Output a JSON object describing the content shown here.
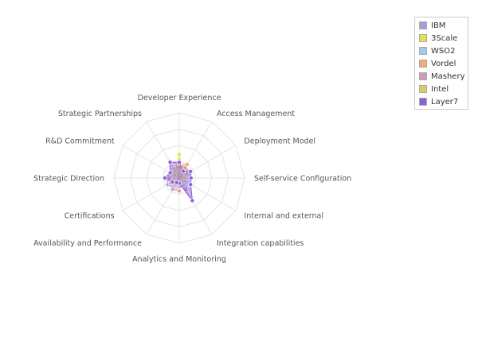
{
  "chart_data": {
    "type": "radar",
    "axes": [
      "Developer Experience",
      "Access Management",
      "Deployment Model",
      "Self-service Configuration",
      "Internal and external",
      "Integration capabilities",
      "Analytics and Monitoring",
      "Availability and Performance",
      "Certifications",
      "Strategic Direction",
      "R&D Commitment",
      "Strategic Partnerships"
    ],
    "rmax": 5,
    "rings": 4,
    "grid": true,
    "legend_position": "top-right",
    "series": [
      {
        "name": "IBM",
        "color": "#a99bd4",
        "values": [
          1.0,
          0.9,
          1.0,
          0.6,
          0.6,
          1.0,
          0.2,
          0.9,
          1.0,
          1.0,
          0.8,
          0.8
        ]
      },
      {
        "name": "3Scale",
        "color": "#e2e24a",
        "values": [
          1.8,
          0.5,
          0.6,
          0.4,
          0.4,
          0.4,
          0.4,
          0.4,
          0.4,
          0.4,
          0.4,
          0.6
        ]
      },
      {
        "name": "WSO2",
        "color": "#a8c8ea",
        "values": [
          0.9,
          0.6,
          0.6,
          0.6,
          0.6,
          0.6,
          0.6,
          0.6,
          0.6,
          0.6,
          0.6,
          0.8
        ]
      },
      {
        "name": "Vordel",
        "color": "#f4ac6e",
        "values": [
          1.0,
          1.2,
          0.6,
          0.5,
          0.4,
          0.4,
          0.4,
          0.4,
          0.4,
          0.4,
          0.4,
          0.8
        ]
      },
      {
        "name": "Mashery",
        "color": "#cf9bb8",
        "values": [
          0.8,
          0.4,
          0.6,
          0.4,
          0.4,
          0.4,
          1.0,
          1.0,
          0.8,
          0.8,
          0.6,
          0.6
        ]
      },
      {
        "name": "Intel",
        "color": "#d2d06a",
        "values": [
          1.1,
          0.6,
          0.6,
          0.4,
          0.4,
          0.4,
          0.4,
          0.4,
          0.4,
          0.4,
          0.4,
          0.6
        ]
      },
      {
        "name": "Layer7",
        "color": "#8b62d6",
        "values": [
          1.2,
          0.6,
          1.0,
          0.9,
          1.0,
          2.0,
          0.4,
          0.4,
          0.6,
          1.1,
          0.8,
          1.4
        ]
      }
    ]
  }
}
